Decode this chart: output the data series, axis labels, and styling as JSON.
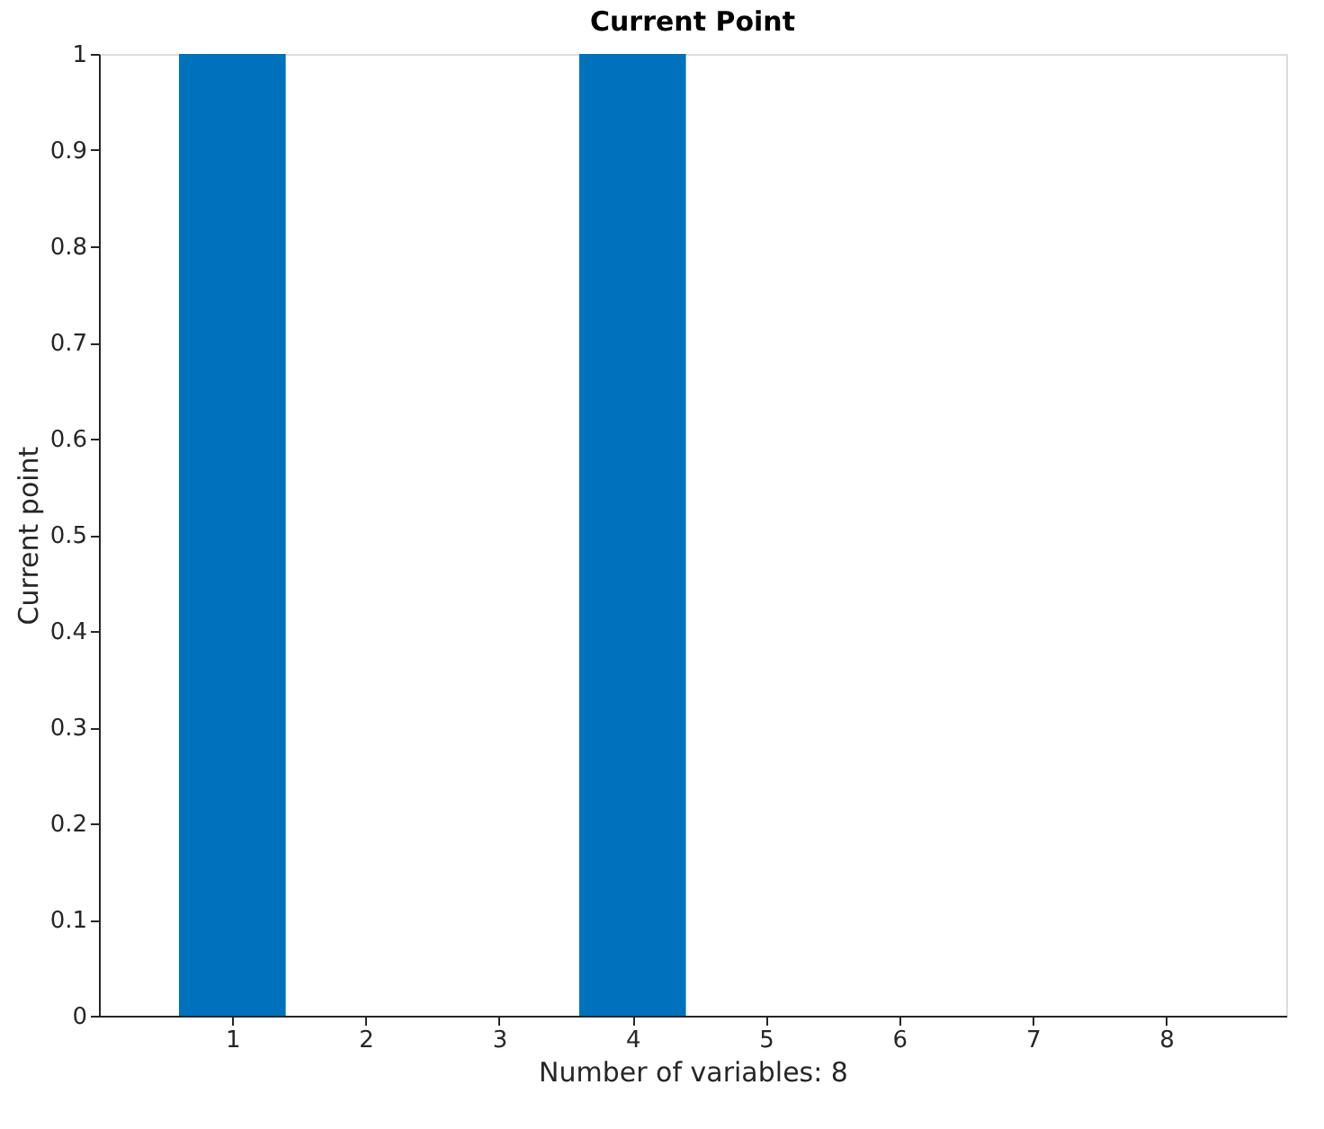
{
  "chart_data": {
    "type": "bar",
    "title": "Current Point",
    "xlabel": "Number of variables: 8",
    "ylabel": "Current point",
    "x": [
      1,
      2,
      3,
      4,
      5,
      6,
      7,
      8
    ],
    "values": [
      1,
      0,
      0,
      1,
      0,
      0,
      0,
      0
    ],
    "color": "#0072bd",
    "xlim": [
      0,
      8.9
    ],
    "xticks": [
      1,
      2,
      3,
      4,
      5,
      6,
      7,
      8
    ],
    "ylim": [
      0,
      1
    ],
    "yticks": [
      0,
      0.1,
      0.2,
      0.3,
      0.4,
      0.5,
      0.6,
      0.7,
      0.8,
      0.9,
      1
    ],
    "grid": false
  }
}
